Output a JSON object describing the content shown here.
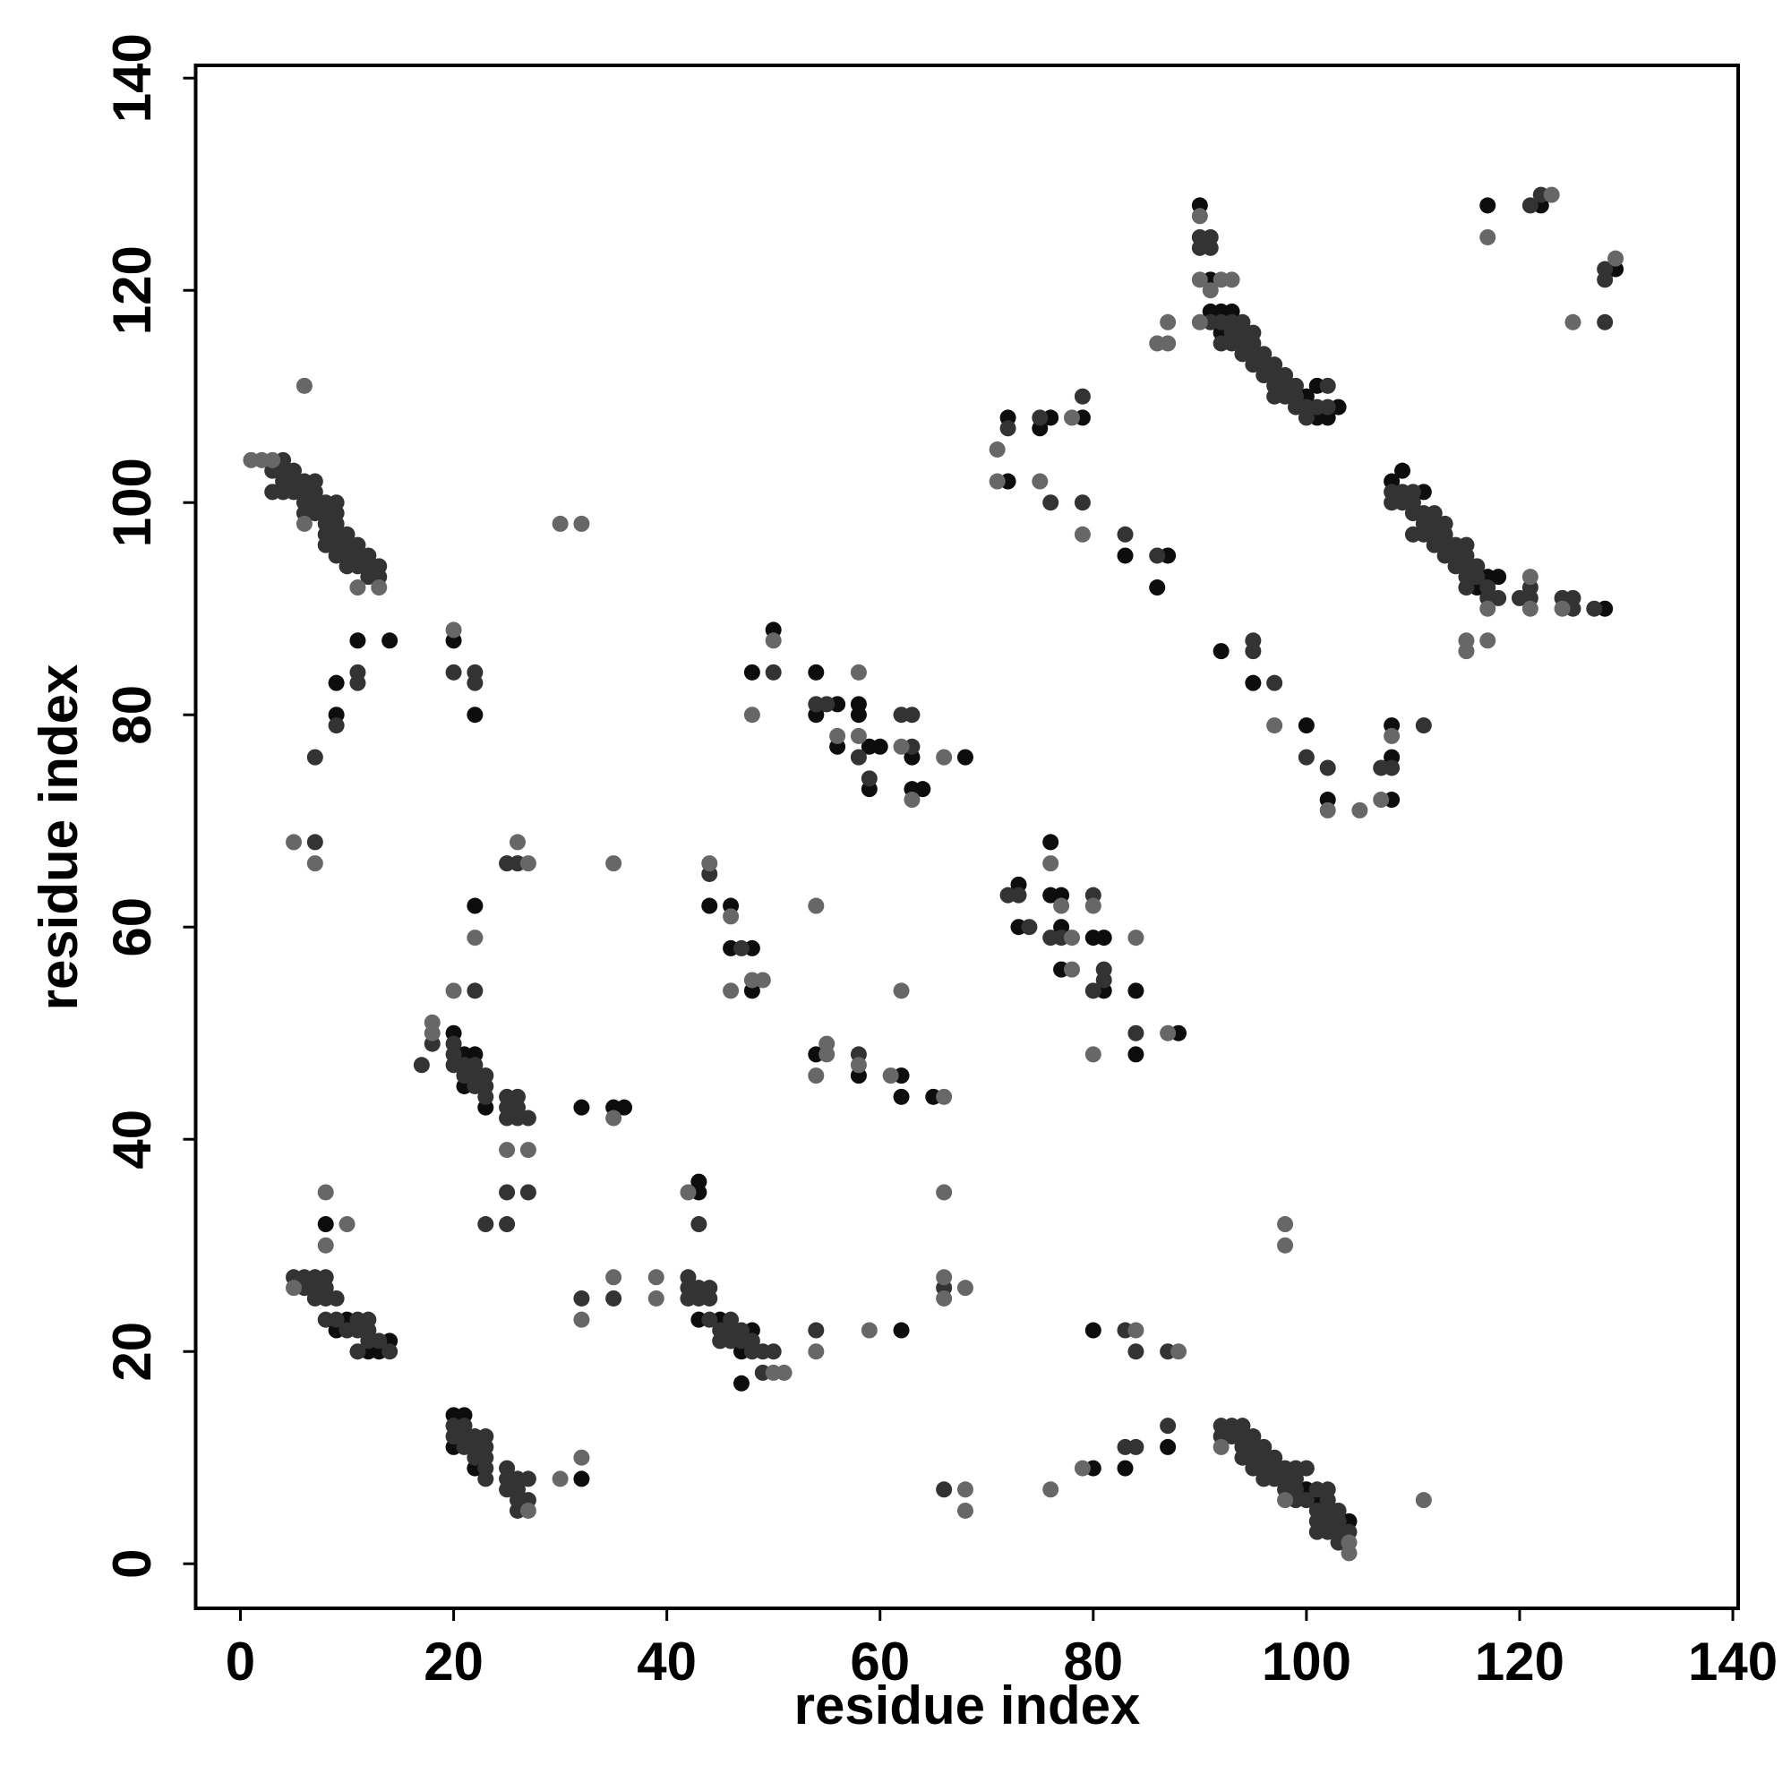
{
  "chart_data": {
    "type": "scatter",
    "xlabel": "residue index",
    "ylabel": "residue index",
    "xlim": [
      -4.2,
      140.5
    ],
    "ylim": [
      -4.2,
      141.2
    ],
    "xticks": [
      0,
      20,
      40,
      60,
      80,
      100,
      120,
      140
    ],
    "yticks": [
      0,
      20,
      40,
      60,
      80,
      100,
      120,
      140
    ],
    "series": [
      {
        "color": "#0d0d0d",
        "x": [
          11,
          14,
          9,
          9,
          20,
          22,
          22,
          20,
          21,
          22,
          21,
          23,
          32,
          35,
          36,
          8,
          10,
          9,
          14,
          12,
          13,
          20,
          21,
          20,
          22,
          32,
          43,
          45,
          48,
          47,
          47,
          43,
          43,
          44,
          46,
          46,
          48,
          48,
          48,
          50,
          54,
          56,
          54,
          58,
          58,
          56,
          59,
          60,
          59,
          63,
          63,
          64,
          68,
          54,
          58,
          62,
          62,
          65,
          62,
          73,
          73,
          76,
          76,
          77,
          77,
          77,
          80,
          81,
          81,
          84,
          84,
          88,
          72,
          76,
          75,
          79,
          72,
          83,
          87,
          86,
          80,
          80,
          83,
          87,
          90,
          91,
          91,
          92,
          93,
          92,
          100,
          101,
          102,
          101,
          103,
          108,
          109,
          111,
          117,
          118,
          116,
          128,
          117,
          122,
          129,
          92,
          95,
          100,
          102,
          108,
          108,
          108,
          100,
          101,
          104
        ],
        "values": [
          87,
          87,
          83,
          80,
          87,
          80,
          62,
          50,
          48,
          48,
          45,
          43,
          43,
          43,
          43,
          32,
          23,
          22,
          21,
          20,
          20,
          14,
          14,
          11,
          9,
          8,
          23,
          23,
          22,
          20,
          17,
          36,
          35,
          62,
          62,
          58,
          58,
          54,
          84,
          88,
          84,
          81,
          80,
          81,
          80,
          77,
          77,
          77,
          73,
          76,
          73,
          73,
          76,
          48,
          46,
          46,
          44,
          44,
          22,
          64,
          60,
          68,
          63,
          63,
          60,
          56,
          59,
          59,
          54,
          54,
          48,
          50,
          108,
          108,
          107,
          108,
          102,
          95,
          95,
          92,
          22,
          9,
          9,
          11,
          128,
          121,
          118,
          118,
          118,
          116,
          110,
          108,
          108,
          111,
          109,
          102,
          103,
          101,
          93,
          93,
          92,
          90,
          128,
          128,
          122,
          86,
          83,
          79,
          72,
          72,
          76,
          79,
          7,
          6,
          4
        ]
      },
      {
        "color": "#333333",
        "x": [
          4,
          3,
          4,
          5,
          4,
          5,
          6,
          7,
          3,
          4,
          5,
          6,
          7,
          6,
          7,
          8,
          9,
          6,
          7,
          8,
          9,
          8,
          9,
          8,
          9,
          10,
          8,
          9,
          10,
          11,
          9,
          10,
          11,
          12,
          10,
          11,
          12,
          13,
          12,
          13,
          11,
          11,
          9,
          7,
          7,
          20,
          22,
          22,
          22,
          18,
          17,
          20,
          20,
          20,
          21,
          22,
          21,
          22,
          23,
          22,
          23,
          23,
          25,
          26,
          25,
          25,
          26,
          26,
          27,
          25,
          27,
          23,
          25,
          25,
          26,
          5,
          6,
          7,
          8,
          6,
          7,
          8,
          7,
          8,
          9,
          8,
          9,
          11,
          12,
          10,
          11,
          12,
          13,
          11,
          14,
          12,
          20,
          21,
          20,
          21,
          22,
          23,
          21,
          22,
          23,
          22,
          23,
          23,
          23,
          25,
          25,
          25,
          26,
          26,
          27,
          26,
          27,
          26,
          32,
          35,
          42,
          42,
          43,
          44,
          42,
          43,
          44,
          44,
          46,
          45,
          46,
          47,
          45,
          46,
          47,
          48,
          48,
          49,
          50,
          49,
          43,
          44,
          47,
          50,
          54,
          55,
          58,
          59,
          62,
          63,
          63,
          58,
          54,
          66,
          66,
          72,
          73,
          74,
          77,
          76,
          80,
          80,
          81,
          81,
          84,
          72,
          75,
          79,
          76,
          79,
          83,
          86,
          83,
          84,
          87,
          83,
          84,
          87,
          90,
          91,
          90,
          91,
          91,
          92,
          93,
          93,
          94,
          92,
          93,
          94,
          95,
          94,
          95,
          96,
          95,
          96,
          97,
          96,
          97,
          98,
          97,
          98,
          99,
          97,
          98,
          99,
          99,
          100,
          101,
          100,
          102,
          102,
          94,
          95,
          108,
          109,
          110,
          108,
          109,
          110,
          110,
          111,
          112,
          111,
          112,
          113,
          110,
          111,
          112,
          113,
          112,
          113,
          114,
          115,
          113,
          114,
          115,
          114,
          115,
          116,
          115,
          116,
          115,
          117,
          117,
          118,
          120,
          121,
          121,
          124,
          125,
          125,
          127,
          121,
          122,
          128,
          128,
          128,
          95,
          95,
          97,
          100,
          102,
          107,
          108,
          111,
          92,
          93,
          94,
          92,
          93,
          94,
          95,
          94,
          95,
          96,
          94,
          95,
          96,
          97,
          95,
          96,
          97,
          98,
          99,
          96,
          97,
          98,
          99,
          100,
          98,
          99,
          101,
          102,
          99,
          100,
          102,
          101,
          102,
          103,
          101,
          102,
          103,
          101,
          102,
          103,
          104,
          103
        ],
        "values": [
          104,
          103,
          103,
          103,
          102,
          102,
          102,
          102,
          101,
          101,
          101,
          101,
          101,
          100,
          100,
          100,
          100,
          99,
          99,
          99,
          99,
          98,
          98,
          97,
          97,
          97,
          96,
          96,
          96,
          96,
          95,
          95,
          95,
          95,
          94,
          94,
          94,
          94,
          93,
          93,
          84,
          83,
          79,
          76,
          68,
          84,
          84,
          83,
          54,
          49,
          47,
          49,
          48,
          47,
          47,
          47,
          46,
          46,
          46,
          45,
          45,
          44,
          44,
          44,
          43,
          42,
          42,
          43,
          42,
          35,
          35,
          32,
          32,
          66,
          66,
          27,
          27,
          27,
          27,
          26,
          26,
          26,
          25,
          25,
          25,
          23,
          23,
          23,
          23,
          22,
          22,
          22,
          21,
          20,
          20,
          21,
          13,
          13,
          12,
          12,
          12,
          12,
          11,
          11,
          11,
          10,
          10,
          9,
          8,
          9,
          8,
          7,
          7,
          8,
          8,
          6,
          6,
          5,
          25,
          25,
          27,
          26,
          26,
          26,
          25,
          25,
          25,
          23,
          23,
          22,
          22,
          22,
          21,
          21,
          21,
          21,
          20,
          20,
          20,
          18,
          32,
          65,
          58,
          84,
          81,
          81,
          76,
          74,
          80,
          80,
          77,
          48,
          22,
          26,
          7,
          63,
          63,
          60,
          59,
          59,
          63,
          54,
          56,
          55,
          50,
          107,
          108,
          110,
          100,
          100,
          97,
          95,
          22,
          20,
          20,
          11,
          11,
          13,
          125,
          125,
          124,
          124,
          117,
          117,
          117,
          116,
          116,
          115,
          115,
          115,
          115,
          114,
          114,
          114,
          113,
          113,
          113,
          112,
          112,
          112,
          111,
          111,
          111,
          110,
          110,
          110,
          109,
          109,
          109,
          108,
          111,
          109,
          117,
          116,
          101,
          101,
          101,
          100,
          100,
          100,
          99,
          99,
          99,
          98,
          98,
          98,
          97,
          97,
          97,
          97,
          96,
          96,
          96,
          96,
          95,
          95,
          95,
          94,
          94,
          94,
          93,
          93,
          92,
          92,
          91,
          91,
          91,
          91,
          92,
          91,
          91,
          90,
          90,
          128,
          129,
          122,
          121,
          117,
          87,
          86,
          83,
          76,
          75,
          75,
          75,
          79,
          13,
          13,
          13,
          12,
          12,
          12,
          12,
          11,
          11,
          11,
          10,
          10,
          10,
          10,
          9,
          9,
          9,
          9,
          9,
          8,
          8,
          8,
          8,
          9,
          7,
          7,
          7,
          7,
          6,
          6,
          6,
          5,
          5,
          5,
          4,
          4,
          4,
          3,
          3,
          3,
          3,
          2
        ]
      },
      {
        "color": "#676767",
        "x": [
          1,
          2,
          3,
          6,
          11,
          13,
          6,
          5,
          7,
          30,
          32,
          20,
          22,
          20,
          18,
          18,
          25,
          27,
          27,
          26,
          35,
          35,
          8,
          8,
          10,
          5,
          27,
          30,
          32,
          32,
          35,
          39,
          39,
          50,
          51,
          42,
          44,
          46,
          48,
          49,
          46,
          48,
          50,
          58,
          56,
          58,
          62,
          63,
          66,
          54,
          55,
          55,
          54,
          58,
          61,
          66,
          66,
          62,
          54,
          59,
          66,
          66,
          68,
          68,
          68,
          76,
          77,
          78,
          78,
          80,
          84,
          80,
          87,
          71,
          78,
          71,
          75,
          79,
          86,
          87,
          87,
          84,
          88,
          76,
          79,
          90,
          90,
          92,
          93,
          91,
          90,
          117,
          121,
          121,
          124,
          115,
          115,
          117,
          117,
          123,
          125,
          129,
          97,
          102,
          105,
          107,
          108,
          98,
          98,
          92,
          98,
          104,
          104,
          111
        ],
        "values": [
          104,
          104,
          104,
          98,
          92,
          92,
          111,
          68,
          66,
          98,
          98,
          88,
          59,
          54,
          51,
          50,
          39,
          39,
          66,
          68,
          42,
          66,
          35,
          30,
          32,
          26,
          5,
          8,
          10,
          23,
          27,
          27,
          25,
          18,
          18,
          35,
          66,
          61,
          55,
          55,
          54,
          80,
          87,
          84,
          78,
          78,
          77,
          72,
          76,
          62,
          48,
          49,
          46,
          47,
          46,
          44,
          35,
          54,
          20,
          22,
          27,
          25,
          26,
          7,
          5,
          66,
          62,
          59,
          56,
          62,
          59,
          48,
          50,
          105,
          108,
          102,
          102,
          97,
          115,
          117,
          115,
          22,
          20,
          7,
          9,
          127,
          121,
          121,
          121,
          120,
          117,
          90,
          93,
          90,
          90,
          87,
          86,
          87,
          125,
          129,
          117,
          123,
          79,
          71,
          71,
          72,
          78,
          32,
          30,
          11,
          6,
          2,
          1,
          6
        ]
      }
    ]
  }
}
